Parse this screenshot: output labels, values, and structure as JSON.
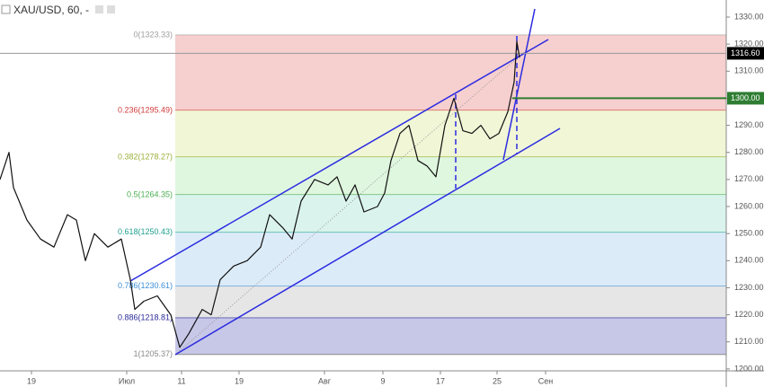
{
  "chart_data": {
    "type": "line",
    "title": "XAU/USD, 60, -",
    "xlim": [
      0,
      161.6
    ],
    "ylim": [
      1199.3,
      1336.3
    ],
    "xticks": [
      {
        "value": 7,
        "label": "19"
      },
      {
        "value": 28.2,
        "label": "Июл"
      },
      {
        "value": 40.4,
        "label": "11"
      },
      {
        "value": 53.2,
        "label": "19"
      },
      {
        "value": 72.2,
        "label": "Авг"
      },
      {
        "value": 85.2,
        "label": "9"
      },
      {
        "value": 98,
        "label": "17"
      },
      {
        "value": 110.6,
        "label": "25"
      },
      {
        "value": 121.4,
        "label": "Сен"
      }
    ],
    "yticks": [
      {
        "value": 1200,
        "label": "1200.00"
      },
      {
        "value": 1210,
        "label": "1210.00"
      },
      {
        "value": 1220,
        "label": "1220.00"
      },
      {
        "value": 1230,
        "label": "1230.00"
      },
      {
        "value": 1240,
        "label": "1240.00"
      },
      {
        "value": 1250,
        "label": "1250.00"
      },
      {
        "value": 1260,
        "label": "1260.00"
      },
      {
        "value": 1270,
        "label": "1270.00"
      },
      {
        "value": 1280,
        "label": "1280.00"
      },
      {
        "value": 1290,
        "label": "1290.00"
      },
      {
        "value": 1300,
        "label": "1300.00"
      },
      {
        "value": 1310,
        "label": "1310.00"
      },
      {
        "value": 1320,
        "label": "1320.00"
      },
      {
        "value": 1330,
        "label": "1330.00"
      }
    ],
    "series": [
      {
        "color": "#111111",
        "x": [
          0,
          2,
          3,
          6,
          9,
          12,
          15,
          17,
          19,
          21,
          24,
          27,
          29,
          30,
          32,
          35,
          38,
          40,
          42,
          45,
          47,
          49,
          52,
          55,
          58,
          60,
          63,
          65,
          67,
          70,
          73,
          75,
          77,
          79,
          81,
          84,
          85.6,
          87,
          89,
          91,
          93,
          95,
          97,
          99,
          101,
          103,
          105,
          107,
          109,
          111,
          113,
          114.4,
          115,
          115.6
        ],
        "values": [
          1270,
          1280,
          1267,
          1255,
          1248,
          1245,
          1257,
          1255,
          1240,
          1250,
          1245,
          1248,
          1233,
          1222,
          1225,
          1227,
          1220,
          1208,
          1213,
          1222,
          1220,
          1233,
          1238,
          1240,
          1245,
          1257,
          1252,
          1248,
          1262,
          1270,
          1268,
          1271,
          1262,
          1268,
          1258,
          1260,
          1265,
          1277,
          1287,
          1290,
          1277,
          1275,
          1271,
          1290,
          1300,
          1288,
          1287,
          1290,
          1285,
          1287,
          1295,
          1306,
          1321,
          1315
        ]
      }
    ],
    "fib_levels": [
      {
        "label": "0(1323.33)",
        "value": 1323.33,
        "color": "#9e9e9e"
      },
      {
        "label": "0.236(1295.49)",
        "value": 1295.49,
        "color": "#d23c3c",
        "fill": "#f4c7c7"
      },
      {
        "label": "0.382(1278.27)",
        "value": 1278.27,
        "color": "#9bb03a",
        "fill": "#edf5cf"
      },
      {
        "label": "0.5(1264.35)",
        "value": 1264.35,
        "color": "#4caf50",
        "fill": "#d9f5d9"
      },
      {
        "label": "0.618(1250.43)",
        "value": 1250.43,
        "color": "#1fa08f",
        "fill": "#d3f1ea"
      },
      {
        "label": "0.786(1230.61)",
        "value": 1230.61,
        "color": "#3d8fd8",
        "fill": "#d6e8f7"
      },
      {
        "label": "0.886(1218.81)",
        "value": 1218.81,
        "color": "#2a2a9a",
        "fill": "#e2e2e2"
      },
      {
        "label": "1(1205.37)",
        "value": 1205.37,
        "color": "#8a8a8a",
        "fill": "#bdbde4"
      }
    ],
    "price_lines": [
      {
        "label": "1316.60",
        "value": 1316.6,
        "color": "#000000"
      },
      {
        "label": "1300.00",
        "value": 1300,
        "color": "#2e7d32"
      }
    ]
  }
}
